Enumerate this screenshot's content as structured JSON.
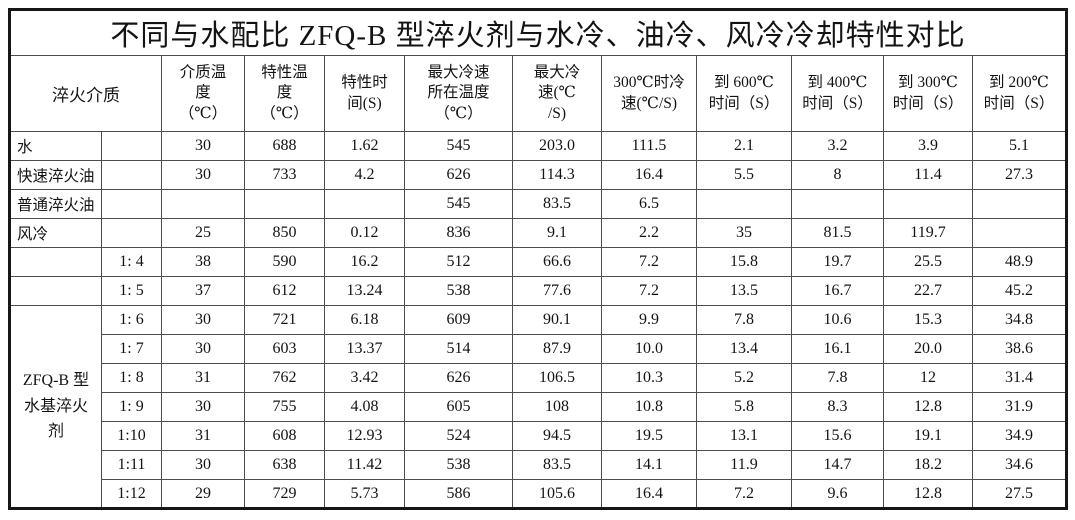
{
  "title": "不同与水配比 ZFQ-B 型淬火剂与水冷、油冷、风冷冷却特性对比",
  "colors": {
    "background": "#ffffff",
    "text": "#131313",
    "grid_line": "#4c4c4c",
    "outer_border": "#161616"
  },
  "table": {
    "corner_header": "淬火介质",
    "column_headers": [
      "介质温\n度\n（℃）",
      "特性温\n度\n（℃）",
      "特性时\n间(S)",
      "最大冷速\n所在温度\n（℃）",
      "最大冷\n速(℃\n/S)",
      "300℃时冷\n速(℃/S)",
      "到 600℃\n时间（S）",
      "到 400℃\n时间（S）",
      "到 300℃\n时间（S）",
      "到 200℃\n时间（S）"
    ],
    "group_label": "ZFQ-B 型\n水基淬火\n剂",
    "group_rowspan": 7,
    "group_start_row": 6,
    "rows": [
      {
        "label": "水",
        "ratio": "",
        "values": [
          "30",
          "688",
          "1.62",
          "545",
          "203.0",
          "111.5",
          "2.1",
          "3.2",
          "3.9",
          "5.1"
        ]
      },
      {
        "label": "快速淬火油",
        "ratio": "",
        "values": [
          "30",
          "733",
          "4.2",
          "626",
          "114.3",
          "16.4",
          "5.5",
          "8",
          "11.4",
          "27.3"
        ]
      },
      {
        "label": "普通淬火油",
        "ratio": "",
        "values": [
          "",
          "",
          "",
          "545",
          "83.5",
          "6.5",
          "",
          "",
          "",
          ""
        ]
      },
      {
        "label": "风冷",
        "ratio": "",
        "values": [
          "25",
          "850",
          "0.12",
          "836",
          "9.1",
          "2.2",
          "35",
          "81.5",
          "119.7",
          ""
        ]
      },
      {
        "label": "",
        "ratio": "1: 4",
        "values": [
          "38",
          "590",
          "16.2",
          "512",
          "66.6",
          "7.2",
          "15.8",
          "19.7",
          "25.5",
          "48.9"
        ]
      },
      {
        "label": "",
        "ratio": "1: 5",
        "values": [
          "37",
          "612",
          "13.24",
          "538",
          "77.6",
          "7.2",
          "13.5",
          "16.7",
          "22.7",
          "45.2"
        ]
      },
      {
        "ratio": "1: 6",
        "values": [
          "30",
          "721",
          "6.18",
          "609",
          "90.1",
          "9.9",
          "7.8",
          "10.6",
          "15.3",
          "34.8"
        ]
      },
      {
        "ratio": "1: 7",
        "values": [
          "30",
          "603",
          "13.37",
          "514",
          "87.9",
          "10.0",
          "13.4",
          "16.1",
          "20.0",
          "38.6"
        ]
      },
      {
        "ratio": "1: 8",
        "values": [
          "31",
          "762",
          "3.42",
          "626",
          "106.5",
          "10.3",
          "5.2",
          "7.8",
          "12",
          "31.4"
        ]
      },
      {
        "ratio": "1: 9",
        "values": [
          "30",
          "755",
          "4.08",
          "605",
          "108",
          "10.8",
          "5.8",
          "8.3",
          "12.8",
          "31.9"
        ]
      },
      {
        "ratio": "1:10",
        "values": [
          "31",
          "608",
          "12.93",
          "524",
          "94.5",
          "19.5",
          "13.1",
          "15.6",
          "19.1",
          "34.9"
        ]
      },
      {
        "ratio": "1:11",
        "values": [
          "30",
          "638",
          "11.42",
          "538",
          "83.5",
          "14.1",
          "11.9",
          "14.7",
          "18.2",
          "34.6"
        ]
      },
      {
        "ratio": "1:12",
        "values": [
          "29",
          "729",
          "5.73",
          "586",
          "105.6",
          "16.4",
          "7.2",
          "9.6",
          "12.8",
          "27.5"
        ]
      }
    ]
  }
}
